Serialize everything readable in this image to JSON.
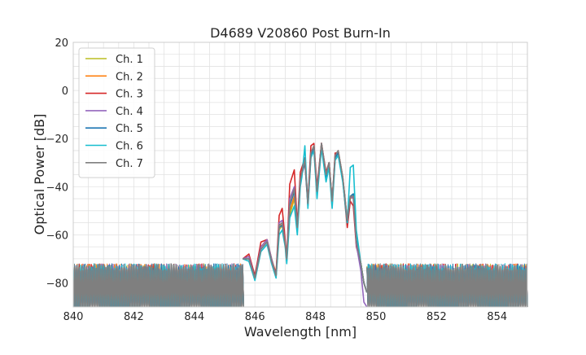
{
  "chart_data": {
    "type": "line",
    "title": "D4689 V20860 Post Burn-In",
    "xlabel": "Wavelength [nm]",
    "ylabel": "Optical Power [dB]",
    "xlim": [
      840,
      855
    ],
    "ylim": [
      -90,
      20
    ],
    "xticks": [
      840,
      842,
      844,
      846,
      848,
      850,
      852,
      854
    ],
    "yticks": [
      -80,
      -60,
      -40,
      -20,
      0,
      20
    ],
    "grid": true,
    "legend_position": "top-left",
    "noise_floor_db": -80,
    "series": [
      {
        "name": "Ch. 1",
        "color": "#bcbd22",
        "x": [
          845.6,
          845.8,
          846.0,
          846.2,
          846.4,
          846.55,
          846.7,
          846.8,
          846.9,
          847.0,
          847.05,
          847.15,
          847.3,
          847.4,
          847.5,
          847.55,
          847.65,
          847.75,
          847.85,
          847.95,
          848.05,
          848.2,
          848.35,
          848.45,
          848.55,
          848.65,
          848.75,
          848.9,
          849.05,
          849.15,
          849.25,
          849.35,
          849.5,
          849.6,
          849.7
        ],
        "y": [
          -70,
          -69,
          -77,
          -65,
          -62,
          -70,
          -77,
          -58,
          -56,
          -63,
          -70,
          -52,
          -45,
          -57,
          -38,
          -34,
          -29,
          -47,
          -26,
          -23,
          -42,
          -22,
          -35,
          -30,
          -46,
          -27,
          -25,
          -36,
          -54,
          -44,
          -43,
          -62,
          -72,
          -80,
          -84
        ]
      },
      {
        "name": "Ch. 2",
        "color": "#ff7f0e",
        "x": [
          845.6,
          845.8,
          846.0,
          846.2,
          846.4,
          846.55,
          846.7,
          846.8,
          846.9,
          847.0,
          847.05,
          847.15,
          847.3,
          847.4,
          847.5,
          847.55,
          847.65,
          847.75,
          847.85,
          847.95,
          848.05,
          848.2,
          848.35,
          848.45,
          848.55,
          848.65,
          848.75,
          848.9,
          849.05,
          849.15,
          849.25,
          849.35,
          849.5,
          849.6,
          849.7
        ],
        "y": [
          -70,
          -69,
          -78,
          -65,
          -62,
          -70,
          -76,
          -56,
          -56,
          -63,
          -70,
          -50,
          -44,
          -57,
          -37,
          -34,
          -30,
          -47,
          -27,
          -23,
          -42,
          -22,
          -35,
          -30,
          -46,
          -28,
          -25,
          -36,
          -54,
          -45,
          -44,
          -64,
          -72,
          -80,
          -84
        ]
      },
      {
        "name": "Ch. 3",
        "color": "#d62728",
        "x": [
          845.6,
          845.8,
          846.0,
          846.2,
          846.4,
          846.55,
          846.7,
          846.8,
          846.9,
          847.0,
          847.05,
          847.15,
          847.3,
          847.4,
          847.5,
          847.55,
          847.65,
          847.75,
          847.85,
          847.95,
          848.05,
          848.2,
          848.35,
          848.45,
          848.55,
          848.65,
          848.75,
          848.9,
          849.05,
          849.15,
          849.25,
          849.35,
          849.5,
          849.6,
          849.7
        ],
        "y": [
          -70,
          -68,
          -77,
          -63,
          -62,
          -71,
          -76,
          -52,
          -49,
          -62,
          -70,
          -39,
          -33,
          -56,
          -34,
          -32,
          -28,
          -46,
          -23,
          -22,
          -40,
          -22,
          -34,
          -30,
          -46,
          -26,
          -26,
          -37,
          -57,
          -46,
          -48,
          -65,
          -72,
          -80,
          -84
        ]
      },
      {
        "name": "Ch. 4",
        "color": "#9467bd",
        "x": [
          845.6,
          845.8,
          846.0,
          846.2,
          846.4,
          846.55,
          846.7,
          846.8,
          846.9,
          847.0,
          847.05,
          847.15,
          847.3,
          847.4,
          847.5,
          847.55,
          847.65,
          847.75,
          847.85,
          847.95,
          848.05,
          848.2,
          848.35,
          848.45,
          848.55,
          848.65,
          848.75,
          848.9,
          849.05,
          849.15,
          849.25,
          849.35,
          849.5,
          849.6,
          849.7
        ],
        "y": [
          -70,
          -69,
          -78,
          -65,
          -62,
          -70,
          -77,
          -55,
          -54,
          -64,
          -70,
          -45,
          -40,
          -57,
          -37,
          -34,
          -29,
          -47,
          -26,
          -23,
          -42,
          -22,
          -35,
          -30,
          -46,
          -27,
          -25,
          -36,
          -54,
          -44,
          -45,
          -64,
          -75,
          -88,
          -90
        ]
      },
      {
        "name": "Ch. 5",
        "color": "#1f77b4",
        "x": [
          845.6,
          845.8,
          846.0,
          846.2,
          846.4,
          846.55,
          846.7,
          846.8,
          846.9,
          847.0,
          847.05,
          847.15,
          847.3,
          847.4,
          847.5,
          847.55,
          847.65,
          847.75,
          847.85,
          847.95,
          848.05,
          848.2,
          848.35,
          848.45,
          848.55,
          848.65,
          848.75,
          848.9,
          849.05,
          849.15,
          849.25,
          849.35,
          849.5,
          849.6,
          849.7
        ],
        "y": [
          -70,
          -70,
          -78,
          -66,
          -63,
          -71,
          -77,
          -57,
          -56,
          -64,
          -71,
          -48,
          -42,
          -58,
          -38,
          -35,
          -30,
          -48,
          -27,
          -24,
          -43,
          -23,
          -36,
          -31,
          -47,
          -28,
          -26,
          -37,
          -55,
          -44,
          -43,
          -62,
          -72,
          -80,
          -84
        ]
      },
      {
        "name": "Ch. 6",
        "color": "#17becf",
        "x": [
          845.6,
          845.8,
          846.0,
          846.2,
          846.4,
          846.55,
          846.7,
          846.8,
          846.9,
          847.0,
          847.05,
          847.15,
          847.3,
          847.4,
          847.5,
          847.55,
          847.65,
          847.75,
          847.85,
          847.95,
          848.05,
          848.2,
          848.35,
          848.45,
          848.55,
          848.65,
          848.75,
          848.9,
          849.05,
          849.15,
          849.25,
          849.35,
          849.5,
          849.6,
          849.7
        ],
        "y": [
          -70,
          -71,
          -79,
          -67,
          -64,
          -72,
          -78,
          -60,
          -58,
          -65,
          -72,
          -53,
          -48,
          -60,
          -40,
          -36,
          -23,
          -49,
          -28,
          -25,
          -45,
          -24,
          -38,
          -32,
          -49,
          -29,
          -27,
          -38,
          -55,
          -32,
          -31,
          -58,
          -72,
          -80,
          -84
        ]
      },
      {
        "name": "Ch. 7",
        "color": "#7f7f7f",
        "x": [
          845.6,
          845.8,
          846.0,
          846.2,
          846.4,
          846.55,
          846.7,
          846.8,
          846.9,
          847.0,
          847.05,
          847.15,
          847.3,
          847.4,
          847.5,
          847.55,
          847.65,
          847.75,
          847.85,
          847.95,
          848.05,
          848.2,
          848.35,
          848.45,
          848.55,
          848.65,
          848.75,
          848.9,
          849.05,
          849.15,
          849.25,
          849.35,
          849.5,
          849.6,
          849.7
        ],
        "y": [
          -70,
          -70,
          -78,
          -66,
          -63,
          -71,
          -77,
          -56,
          -55,
          -64,
          -70,
          -47,
          -41,
          -57,
          -37,
          -34,
          -29,
          -47,
          -26,
          -23,
          -42,
          -22,
          -35,
          -30,
          -46,
          -27,
          -25,
          -36,
          -54,
          -44,
          -44,
          -63,
          -72,
          -80,
          -84
        ]
      }
    ]
  }
}
